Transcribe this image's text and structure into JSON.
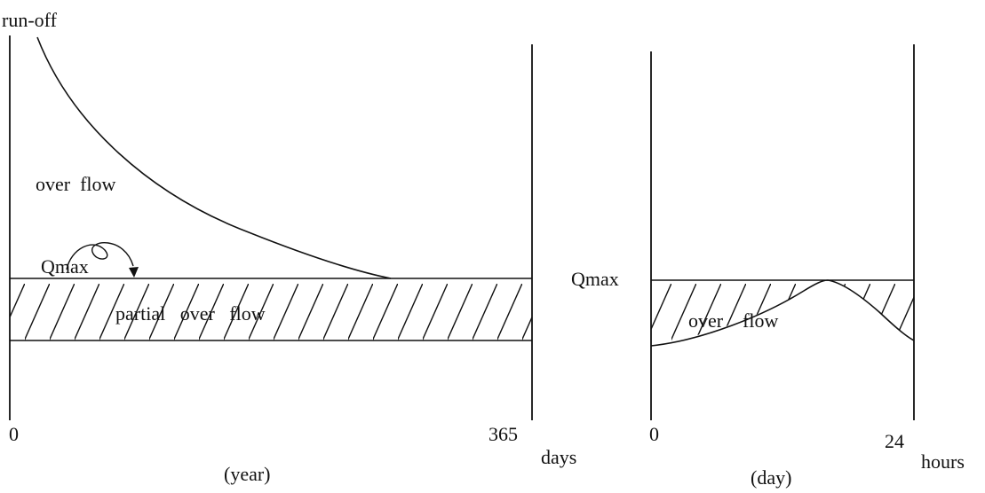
{
  "left_panel": {
    "y_axis_label": "run-off",
    "x_start_label": "0",
    "x_end_label": "365",
    "x_unit_label": "days",
    "caption": "(year)",
    "over_flow_label": "over  flow",
    "qmax_label": "Qmax",
    "band_label": "partial   over   flow"
  },
  "right_panel": {
    "qmax_label": "Qmax",
    "x_start_label": "0",
    "x_end_label": "24",
    "x_unit_label": "hours",
    "caption": "(day)",
    "over_flow_label": "over    flow"
  }
}
